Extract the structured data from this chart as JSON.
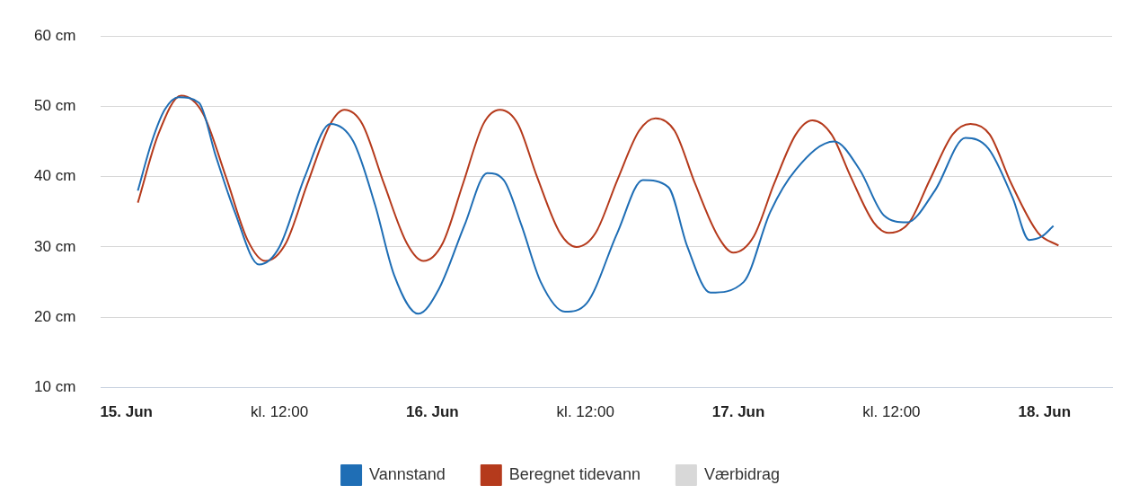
{
  "chart_data": {
    "type": "line",
    "xlim": [
      "--06-14T22:00",
      "--06-18T05:18"
    ],
    "ylim": [
      10,
      60
    ],
    "xticks": [
      {
        "value": "--06-15",
        "label": "15. Jun"
      },
      {
        "value": "--06-15T12:00",
        "label": "kl. 12:00"
      },
      {
        "value": "--06-16",
        "label": "16. Jun"
      },
      {
        "value": "--06-16T12:00",
        "label": "kl. 12:00"
      },
      {
        "value": "--06-17",
        "label": "17. Jun"
      },
      {
        "value": "--06-17T12:00",
        "label": "kl. 12:00"
      },
      {
        "value": "--06-18",
        "label": "18. Jun"
      }
    ],
    "yticks": [
      {
        "value": 10,
        "label": "10 cm"
      },
      {
        "value": 20,
        "label": "20 cm"
      },
      {
        "value": 30,
        "label": "30 cm"
      },
      {
        "value": 40,
        "label": "40 cm"
      },
      {
        "value": 50,
        "label": "50 cm"
      },
      {
        "value": 60,
        "label": "60 cm"
      }
    ],
    "grid": "y",
    "legend": "bottom",
    "marker": "none",
    "line_style": "solid",
    "series": [
      {
        "name": "Vannstand",
        "color": "#1f6eb5",
        "x": [
          "--06-15T00:54",
          "--06-15T02:00",
          "--06-15T03:00",
          "--06-15T04:06",
          "--06-15T05:42",
          "--06-15T07:00",
          "--06-15T08:30",
          "--06-15T10:24",
          "--06-15T12:00",
          "--06-15T14:00",
          "--06-15T16:00",
          "--06-15T17:48",
          "--06-15T19:30",
          "--06-15T21:00",
          "--06-15T22:54",
          "--06-16T00:30",
          "--06-16T02:30",
          "--06-16T04:18",
          "--06-16T05:36",
          "--06-16T07:00",
          "--06-16T08:30",
          "--06-16T10:24",
          "--06-16T12:06",
          "--06-16T14:30",
          "--06-16T16:30",
          "--06-16T18:30",
          "--06-16T20:00",
          "--06-16T21:48",
          "--06-17T00:24",
          "--06-17T02:30",
          "--06-17T04:30",
          "--06-17T07:30",
          "--06-17T09:30",
          "--06-17T11:24",
          "--06-17T13:12",
          "--06-17T15:24",
          "--06-17T17:48",
          "--06-17T19:36",
          "--06-17T21:30",
          "--06-17T22:48",
          "--06-17T23:48",
          "--06-18T00:42"
        ],
        "values": [
          38,
          45,
          49.5,
          51.3,
          50.5,
          43,
          35,
          27.5,
          30,
          40,
          47.5,
          45,
          36,
          26,
          20.5,
          24,
          33,
          40.5,
          39.5,
          33,
          25,
          20.8,
          22,
          32,
          39.5,
          38.5,
          30,
          23.5,
          25,
          35,
          41,
          45,
          41,
          34.5,
          33.5,
          38,
          45.5,
          44,
          37,
          31,
          31.5,
          33
        ]
      },
      {
        "name": "Beregnet tidevann",
        "color": "#b53a1c",
        "x": [
          "--06-15T00:54",
          "--06-15T02:30",
          "--06-15T04:18",
          "--06-15T06:00",
          "--06-15T07:48",
          "--06-15T09:30",
          "--06-15T10:54",
          "--06-15T12:30",
          "--06-15T14:12",
          "--06-15T16:00",
          "--06-15T17:06",
          "--06-15T18:30",
          "--06-15T20:12",
          "--06-15T22:00",
          "--06-15T23:18",
          "--06-16T00:48",
          "--06-16T02:24",
          "--06-16T04:00",
          "--06-16T05:18",
          "--06-16T06:42",
          "--06-16T08:12",
          "--06-16T10:00",
          "--06-16T11:18",
          "--06-16T12:48",
          "--06-16T14:30",
          "--06-16T16:12",
          "--06-16T17:30",
          "--06-16T19:00",
          "--06-16T20:36",
          "--06-16T22:24",
          "--06-16T23:36",
          "--06-17T01:12",
          "--06-17T02:48",
          "--06-17T04:30",
          "--06-17T05:48",
          "--06-17T07:18",
          "--06-17T08:48",
          "--06-17T10:36",
          "--06-17T11:48",
          "--06-17T13:24",
          "--06-17T15:00",
          "--06-17T16:48",
          "--06-17T18:12",
          "--06-17T19:42",
          "--06-17T21:24",
          "--06-17T23:30",
          "--06-18T01:06"
        ],
        "values": [
          36.3,
          46,
          51.5,
          49,
          40,
          31,
          28,
          30.5,
          39,
          47.5,
          49.5,
          47.5,
          39,
          30.5,
          28,
          30.5,
          39,
          47.5,
          49.5,
          47.5,
          40,
          32,
          30,
          32,
          39.5,
          46.5,
          48.3,
          46.5,
          39,
          31.5,
          29.2,
          31.5,
          39,
          46,
          48,
          46,
          40,
          33.5,
          32,
          33.5,
          39.5,
          46,
          47.5,
          46,
          39,
          32,
          30.2
        ]
      },
      {
        "name": "Værbidrag",
        "color": "#d8d8d8"
      }
    ]
  }
}
